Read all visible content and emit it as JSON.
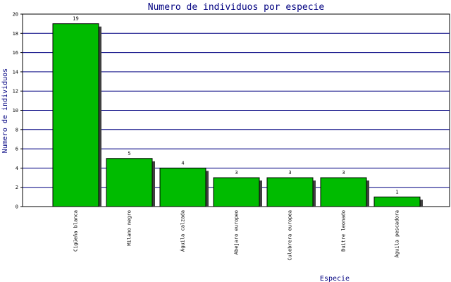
{
  "chart_data": {
    "type": "bar",
    "title": "Numero de individuos por especie",
    "xlabel": "Especie",
    "ylabel": "Numero de individuos",
    "ylim": [
      0,
      20
    ],
    "y_ticks": [
      0,
      2,
      4,
      6,
      8,
      10,
      12,
      14,
      16,
      18,
      20
    ],
    "grid": true,
    "categories": [
      "Cigüeña blanca",
      "Milano negro",
      "Águila calzada",
      "Abejaro europeo",
      "Culebrera europea",
      "Buitre leonado",
      "Águila pescadora"
    ],
    "values": [
      19,
      5,
      4,
      3,
      3,
      3,
      1
    ],
    "colors": {
      "bar": "#00bb00",
      "bar_stroke": "#000000",
      "shadow": "#404040",
      "grid": "#000080",
      "axis": "#000000",
      "text": "#000080"
    }
  }
}
